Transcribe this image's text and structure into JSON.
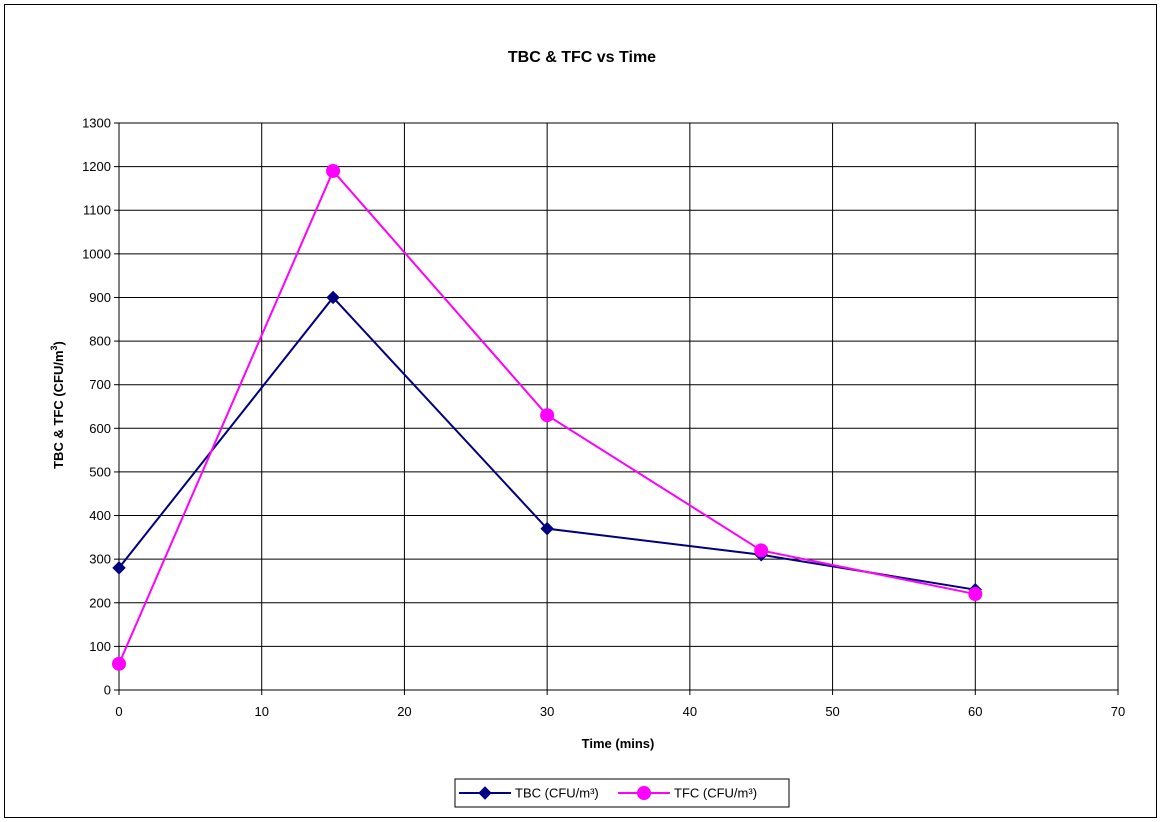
{
  "chart_data": {
    "type": "line",
    "title": "TBC & TFC vs Time",
    "xlabel": "Time (mins)",
    "ylabel": "TBC & TFC (CFU/m",
    "ylabel_sup": "3",
    "ylabel_close": ")",
    "xlim": [
      0,
      70
    ],
    "ylim": [
      0,
      1300
    ],
    "x_ticks": [
      0,
      10,
      20,
      30,
      40,
      50,
      60,
      70
    ],
    "y_ticks": [
      0,
      100,
      200,
      300,
      400,
      500,
      600,
      700,
      800,
      900,
      1000,
      1100,
      1200,
      1300
    ],
    "grid": true,
    "legend_position": "bottom",
    "series": [
      {
        "name": "TBC (CFU/m³)",
        "color": "#000080",
        "marker": "diamond",
        "x": [
          0,
          15,
          30,
          45,
          60
        ],
        "y": [
          280,
          900,
          370,
          310,
          230
        ]
      },
      {
        "name": "TFC (CFU/m³)",
        "color": "#ff00ff",
        "marker": "circle",
        "x": [
          0,
          15,
          30,
          45,
          60
        ],
        "y": [
          60,
          1190,
          630,
          320,
          220
        ]
      }
    ]
  }
}
